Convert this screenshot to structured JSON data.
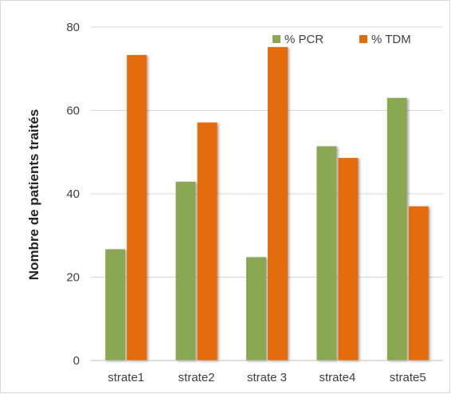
{
  "chart_data": {
    "type": "bar",
    "title": "",
    "xlabel": "",
    "ylabel": "Nombre de patients traités",
    "categories": [
      "strate1",
      "strate2",
      "strate 3",
      "strate4",
      "strate5"
    ],
    "series": [
      {
        "name": "% PCR",
        "color": "#8aa853",
        "values": [
          26.7,
          42.9,
          24.8,
          51.4,
          63.0
        ]
      },
      {
        "name": "% TDM",
        "color": "#e46c0a",
        "values": [
          73.3,
          57.1,
          75.2,
          48.6,
          37.0
        ]
      }
    ],
    "ylim": [
      0,
      80
    ],
    "yticks": [
      0,
      20,
      40,
      60,
      80
    ],
    "grid": true,
    "legend_position": "top-right"
  }
}
